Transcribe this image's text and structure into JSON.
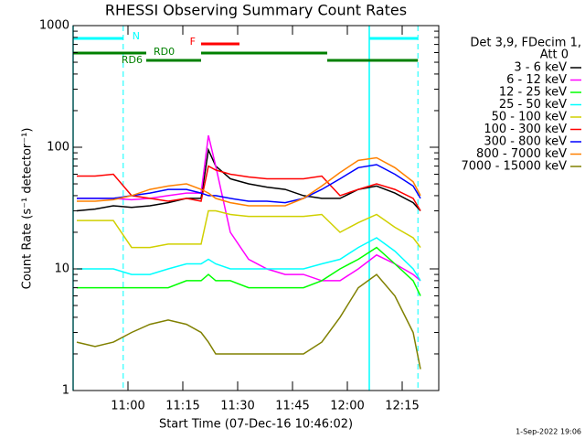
{
  "chart_data": {
    "type": "line",
    "title": "RHESSI Observing Summary Count Rates",
    "x_label": "Start Time (07-Dec-16 10:46:02)",
    "y_label": "Count Rate (s⁻¹ detector⁻¹)",
    "log_y": true,
    "xlim": [
      -1,
      99
    ],
    "ylim": [
      1,
      1000
    ],
    "xticks": [
      {
        "value": 14,
        "label": "11:00"
      },
      {
        "value": 29,
        "label": "11:15"
      },
      {
        "value": 44,
        "label": "11:30"
      },
      {
        "value": 59,
        "label": "11:45"
      },
      {
        "value": 74,
        "label": "12:00"
      },
      {
        "value": 89,
        "label": "12:15"
      }
    ],
    "yticks": [
      1,
      10,
      100,
      1000
    ],
    "legend_title": [
      "Det 3,9, FDecim 1,",
      "Att 0"
    ],
    "footer": "1-Sep-2022 19:06",
    "x": [
      0,
      5,
      10,
      15,
      20,
      25,
      30,
      34,
      36,
      38,
      42,
      47,
      52,
      57,
      62,
      67,
      72,
      77,
      82,
      87,
      92,
      94
    ],
    "series": [
      {
        "name": "3 - 6 keV",
        "color": "#000000",
        "values": [
          30,
          31,
          33,
          32,
          33,
          35,
          38,
          38,
          95,
          70,
          55,
          50,
          47,
          45,
          40,
          38,
          38,
          45,
          48,
          42,
          35,
          30
        ]
      },
      {
        "name": "6 - 12 keV",
        "color": "#ff00ff",
        "values": [
          38,
          38,
          38,
          37,
          38,
          40,
          42,
          42,
          125,
          70,
          20,
          12,
          10,
          9,
          9,
          8,
          8,
          10,
          13,
          11,
          9,
          8
        ]
      },
      {
        "name": "12 - 25 keV",
        "color": "#00ff00",
        "values": [
          7,
          7,
          7,
          7,
          7,
          7,
          8,
          8,
          9,
          8,
          8,
          7,
          7,
          7,
          7,
          8,
          10,
          12,
          15,
          11,
          8,
          6
        ]
      },
      {
        "name": "25 - 50 keV",
        "color": "#00ffff",
        "values": [
          10,
          10,
          10,
          9,
          9,
          10,
          11,
          11,
          12,
          11,
          10,
          10,
          10,
          10,
          10,
          11,
          12,
          15,
          18,
          14,
          10,
          8
        ]
      },
      {
        "name": "50 - 100 keV",
        "color": "#d0d000",
        "values": [
          25,
          25,
          25,
          15,
          15,
          16,
          16,
          16,
          30,
          30,
          28,
          27,
          27,
          27,
          27,
          28,
          20,
          24,
          28,
          22,
          18,
          15
        ]
      },
      {
        "name": "100 - 300 keV",
        "color": "#ff0000",
        "values": [
          58,
          58,
          60,
          40,
          38,
          36,
          38,
          36,
          70,
          65,
          60,
          57,
          55,
          55,
          55,
          58,
          40,
          45,
          50,
          45,
          38,
          30
        ]
      },
      {
        "name": "300 - 800 keV",
        "color": "#0000ff",
        "values": [
          38,
          38,
          38,
          40,
          42,
          45,
          45,
          42,
          40,
          40,
          38,
          36,
          36,
          35,
          38,
          45,
          55,
          68,
          72,
          60,
          48,
          38
        ]
      },
      {
        "name": "800 - 7000 keV",
        "color": "#ff8000",
        "values": [
          36,
          36,
          37,
          40,
          45,
          48,
          50,
          45,
          42,
          38,
          35,
          33,
          33,
          33,
          38,
          48,
          62,
          78,
          82,
          68,
          52,
          40
        ]
      },
      {
        "name": "7000 - 15000 keV",
        "color": "#808000",
        "values": [
          2.5,
          2.3,
          2.5,
          3,
          3.5,
          3.8,
          3.5,
          3,
          2.5,
          2,
          2,
          2,
          2,
          2,
          2,
          2.5,
          4,
          7,
          9,
          6,
          3,
          1.5
        ]
      }
    ],
    "flags": [
      {
        "label": "N",
        "color": "#00ffff",
        "segments": [
          [
            -1,
            12.7
          ],
          [
            80,
            93.3
          ]
        ]
      },
      {
        "label": "F",
        "color": "#ff0000",
        "segments": [
          [
            34,
            44.5
          ]
        ]
      },
      {
        "label": "RD0",
        "color": "#008000",
        "segments": [
          [
            -1,
            19
          ],
          [
            34,
            68.5
          ]
        ]
      },
      {
        "label": "RD6",
        "color": "#008000",
        "segments": [
          [
            19,
            34
          ],
          [
            68.5,
            93.3
          ]
        ]
      }
    ]
  }
}
